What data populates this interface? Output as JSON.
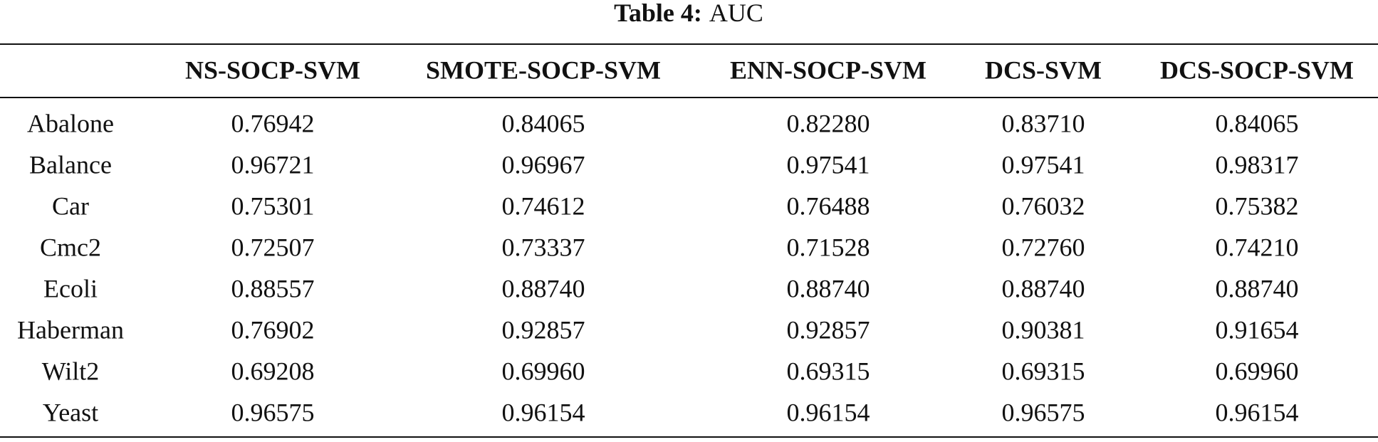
{
  "caption": {
    "label": "Table 4:",
    "text": "AUC"
  },
  "table": {
    "header": [
      "",
      "NS-SOCP-SVM",
      "SMOTE-SOCP-SVM",
      "ENN-SOCP-SVM",
      "DCS-SVM",
      "DCS-SOCP-SVM"
    ],
    "rows": [
      [
        "Abalone",
        "0.76942",
        "0.84065",
        "0.82280",
        "0.83710",
        "0.84065"
      ],
      [
        "Balance",
        "0.96721",
        "0.96967",
        "0.97541",
        "0.97541",
        "0.98317"
      ],
      [
        "Car",
        "0.75301",
        "0.74612",
        "0.76488",
        "0.76032",
        "0.75382"
      ],
      [
        "Cmc2",
        "0.72507",
        "0.73337",
        "0.71528",
        "0.72760",
        "0.74210"
      ],
      [
        "Ecoli",
        "0.88557",
        "0.88740",
        "0.88740",
        "0.88740",
        "0.88740"
      ],
      [
        "Haberman",
        "0.76902",
        "0.92857",
        "0.92857",
        "0.90381",
        "0.91654"
      ],
      [
        "Wilt2",
        "0.69208",
        "0.69960",
        "0.69315",
        "0.69315",
        "0.69960"
      ],
      [
        "Yeast",
        "0.96575",
        "0.96154",
        "0.96154",
        "0.96575",
        "0.96154"
      ]
    ]
  }
}
